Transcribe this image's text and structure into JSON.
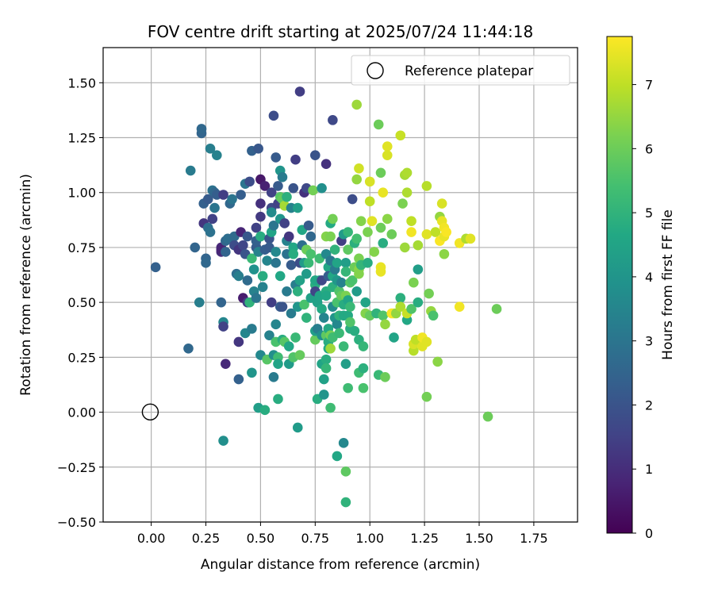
{
  "chart_data": {
    "type": "scatter",
    "title": "FOV centre drift starting at 2025/07/24 11:44:18",
    "xlabel": "Angular distance from reference (arcmin)",
    "ylabel": "Rotation from reference (arcmin)",
    "xlim": [
      -0.22,
      1.95
    ],
    "ylim": [
      -0.5,
      1.66
    ],
    "xticks": [
      "0.00",
      "0.25",
      "0.50",
      "0.75",
      "1.00",
      "1.25",
      "1.50",
      "1.75"
    ],
    "yticks": [
      "−0.50",
      "−0.25",
      "0.00",
      "0.25",
      "0.50",
      "0.75",
      "1.00",
      "1.25",
      "1.50"
    ],
    "grid": true,
    "legend": {
      "placement": "upper-right",
      "entries": [
        "Reference platepar"
      ]
    },
    "reference_point": {
      "x": 0.0,
      "y": 0.0
    },
    "colorbar": {
      "label": "Hours from first FF file",
      "colormap": "viridis",
      "range": [
        0,
        7.75
      ],
      "ticks": [
        "0",
        "1",
        "2",
        "3",
        "4",
        "5",
        "6",
        "7"
      ]
    },
    "points": [
      [
        0.02,
        0.66,
        2.4
      ],
      [
        0.17,
        0.29,
        2.6
      ],
      [
        0.18,
        1.1,
        3.2
      ],
      [
        0.2,
        0.75,
        2.5
      ],
      [
        0.22,
        0.5,
        3.3
      ],
      [
        0.23,
        1.27,
        2.5
      ],
      [
        0.23,
        1.29,
        2.6
      ],
      [
        0.24,
        0.86,
        1.2
      ],
      [
        0.24,
        0.95,
        2.4
      ],
      [
        0.25,
        0.7,
        2.5
      ],
      [
        0.25,
        0.68,
        2.6
      ],
      [
        0.26,
        0.97,
        2.2
      ],
      [
        0.26,
        0.84,
        2.8
      ],
      [
        0.27,
        1.2,
        3.3
      ],
      [
        0.27,
        0.82,
        2.9
      ],
      [
        0.28,
        0.88,
        1.5
      ],
      [
        0.28,
        1.01,
        2.9
      ],
      [
        0.29,
        1.0,
        2.6
      ],
      [
        0.29,
        0.93,
        3.0
      ],
      [
        0.3,
        1.17,
        3.4
      ],
      [
        0.3,
        0.99,
        2.3
      ],
      [
        0.32,
        0.5,
        2.5
      ],
      [
        0.32,
        0.75,
        0.9
      ],
      [
        0.32,
        0.73,
        1.0
      ],
      [
        0.32,
        0.74,
        0.8
      ],
      [
        0.33,
        0.41,
        3.5
      ],
      [
        0.33,
        0.39,
        1.5
      ],
      [
        0.33,
        0.99,
        1.4
      ],
      [
        0.33,
        -0.13,
        3.8
      ],
      [
        0.34,
        0.22,
        0.9
      ],
      [
        0.34,
        0.78,
        2.6
      ],
      [
        0.34,
        0.73,
        2.5
      ],
      [
        0.35,
        0.79,
        2.8
      ],
      [
        0.36,
        0.95,
        2.6
      ],
      [
        0.37,
        0.97,
        3.0
      ],
      [
        0.38,
        0.8,
        2.7
      ],
      [
        0.38,
        0.76,
        1.8
      ],
      [
        0.39,
        0.63,
        2.8
      ],
      [
        0.4,
        0.62,
        3.3
      ],
      [
        0.4,
        0.15,
        2.4
      ],
      [
        0.4,
        0.32,
        1.2
      ],
      [
        0.4,
        0.74,
        1.2
      ],
      [
        0.41,
        0.82,
        0.8
      ],
      [
        0.41,
        0.99,
        2.3
      ],
      [
        0.42,
        0.52,
        0.6
      ],
      [
        0.42,
        0.76,
        1.6
      ],
      [
        0.43,
        0.72,
        2.0
      ],
      [
        0.43,
        0.36,
        3.5
      ],
      [
        0.43,
        1.04,
        3.0
      ],
      [
        0.44,
        0.6,
        2.7
      ],
      [
        0.44,
        0.8,
        2.1
      ],
      [
        0.44,
        0.5,
        1.4
      ],
      [
        0.45,
        1.05,
        1.8
      ],
      [
        0.45,
        0.5,
        5.0
      ],
      [
        0.46,
        0.7,
        5.2
      ],
      [
        0.46,
        0.38,
        3.2
      ],
      [
        0.46,
        0.18,
        4.0
      ],
      [
        0.46,
        1.19,
        2.4
      ],
      [
        0.47,
        0.65,
        3.9
      ],
      [
        0.47,
        0.55,
        3.4
      ],
      [
        0.48,
        0.84,
        1.5
      ],
      [
        0.48,
        0.75,
        2.2
      ],
      [
        0.48,
        0.52,
        3.0
      ],
      [
        0.48,
        0.78,
        2.4
      ],
      [
        0.49,
        0.02,
        4.3
      ],
      [
        0.49,
        1.2,
        2.1
      ],
      [
        0.49,
        0.73,
        3.4
      ],
      [
        0.5,
        1.06,
        0.5
      ],
      [
        0.5,
        0.95,
        1.1
      ],
      [
        0.5,
        0.89,
        1.3
      ],
      [
        0.5,
        0.8,
        4.8
      ],
      [
        0.5,
        0.26,
        3.6
      ],
      [
        0.51,
        0.57,
        3.4
      ],
      [
        0.51,
        0.62,
        4.8
      ],
      [
        0.52,
        0.01,
        4.8
      ],
      [
        0.52,
        1.03,
        0.7
      ],
      [
        0.52,
        0.74,
        2.3
      ],
      [
        0.53,
        0.24,
        5.7
      ],
      [
        0.53,
        0.69,
        3.5
      ],
      [
        0.54,
        0.79,
        2.0
      ],
      [
        0.54,
        0.75,
        2.2
      ],
      [
        0.54,
        0.35,
        3.4
      ],
      [
        0.55,
        1.0,
        1.5
      ],
      [
        0.55,
        0.93,
        1.7
      ],
      [
        0.55,
        0.91,
        3.7
      ],
      [
        0.55,
        0.82,
        4.5
      ],
      [
        0.55,
        0.5,
        1.4
      ],
      [
        0.56,
        1.35,
        1.8
      ],
      [
        0.56,
        0.26,
        3.8
      ],
      [
        0.56,
        0.16,
        3.2
      ],
      [
        0.56,
        0.85,
        3.0
      ],
      [
        0.57,
        1.16,
        2.2
      ],
      [
        0.57,
        0.4,
        3.5
      ],
      [
        0.57,
        0.32,
        5.5
      ],
      [
        0.57,
        0.73,
        3.6
      ],
      [
        0.57,
        0.68,
        3.0
      ],
      [
        0.58,
        1.03,
        2.2
      ],
      [
        0.58,
        0.25,
        5.3
      ],
      [
        0.58,
        0.22,
        4.5
      ],
      [
        0.58,
        0.06,
        4.8
      ],
      [
        0.58,
        0.95,
        1.5
      ],
      [
        0.59,
        1.1,
        4.0
      ],
      [
        0.59,
        0.98,
        5.7
      ],
      [
        0.59,
        0.88,
        4.0
      ],
      [
        0.59,
        0.48,
        2.2
      ],
      [
        0.59,
        0.62,
        4.6
      ],
      [
        0.6,
        0.97,
        5.9
      ],
      [
        0.6,
        1.07,
        3.2
      ],
      [
        0.6,
        0.48,
        2.0
      ],
      [
        0.6,
        0.33,
        4.8
      ],
      [
        0.61,
        0.94,
        6.7
      ],
      [
        0.61,
        0.86,
        1.5
      ],
      [
        0.61,
        0.32,
        5.7
      ],
      [
        0.62,
        0.98,
        4.9
      ],
      [
        0.62,
        0.72,
        2.9
      ],
      [
        0.62,
        0.55,
        3.2
      ],
      [
        0.62,
        0.78,
        3.4
      ],
      [
        0.63,
        0.22,
        4.2
      ],
      [
        0.63,
        0.8,
        1.2
      ],
      [
        0.63,
        0.3,
        4.6
      ],
      [
        0.64,
        0.93,
        3.4
      ],
      [
        0.64,
        0.67,
        2.2
      ],
      [
        0.64,
        0.45,
        3.2
      ],
      [
        0.65,
        1.02,
        2.0
      ],
      [
        0.65,
        0.75,
        4.6
      ],
      [
        0.65,
        0.25,
        5.6
      ],
      [
        0.65,
        0.72,
        4.8
      ],
      [
        0.66,
        1.15,
        1.4
      ],
      [
        0.66,
        0.58,
        3.3
      ],
      [
        0.66,
        0.34,
        5.2
      ],
      [
        0.67,
        -0.07,
        4.2
      ],
      [
        0.67,
        0.55,
        4.9
      ],
      [
        0.67,
        0.93,
        4.3
      ],
      [
        0.67,
        0.48,
        4.0
      ],
      [
        0.68,
        1.46,
        1.4
      ],
      [
        0.68,
        0.68,
        1.8
      ],
      [
        0.68,
        0.6,
        4.4
      ],
      [
        0.68,
        0.26,
        5.9
      ],
      [
        0.69,
        0.83,
        4.6
      ],
      [
        0.69,
        0.76,
        2.8
      ],
      [
        0.7,
        1.0,
        1.1
      ],
      [
        0.7,
        0.68,
        4.2
      ],
      [
        0.7,
        0.49,
        5.5
      ],
      [
        0.71,
        0.43,
        5.0
      ],
      [
        0.71,
        0.74,
        6.0
      ],
      [
        0.71,
        0.63,
        4.2
      ],
      [
        0.71,
        1.02,
        1.7
      ],
      [
        0.72,
        0.85,
        2.2
      ],
      [
        0.72,
        0.68,
        5.2
      ],
      [
        0.73,
        0.8,
        2.6
      ],
      [
        0.73,
        0.72,
        5.5
      ],
      [
        0.73,
        0.52,
        4.4
      ],
      [
        0.74,
        1.01,
        6.1
      ],
      [
        0.75,
        0.58,
        4.9
      ],
      [
        0.75,
        0.55,
        1.6
      ],
      [
        0.75,
        0.6,
        4.6
      ],
      [
        0.75,
        0.33,
        5.9
      ],
      [
        0.75,
        0.37,
        4.3
      ],
      [
        0.75,
        1.17,
        2.0
      ],
      [
        0.76,
        0.38,
        3.3
      ],
      [
        0.76,
        0.06,
        4.8
      ],
      [
        0.76,
        0.5,
        4.4
      ],
      [
        0.77,
        0.7,
        5.3
      ],
      [
        0.77,
        0.6,
        4.5
      ],
      [
        0.77,
        0.53,
        4.5
      ],
      [
        0.78,
        0.47,
        4.7
      ],
      [
        0.78,
        1.02,
        3.8
      ],
      [
        0.78,
        0.6,
        1.7
      ],
      [
        0.78,
        0.35,
        3.8
      ],
      [
        0.78,
        0.22,
        4.5
      ],
      [
        0.79,
        0.43,
        3.5
      ],
      [
        0.79,
        0.15,
        4.4
      ],
      [
        0.79,
        0.08,
        4.0
      ],
      [
        0.8,
        0.8,
        6.3
      ],
      [
        0.8,
        1.13,
        1.1
      ],
      [
        0.8,
        0.72,
        3.6
      ],
      [
        0.8,
        0.55,
        4.8
      ],
      [
        0.8,
        0.53,
        4.6
      ],
      [
        0.8,
        0.35,
        5.8
      ],
      [
        0.8,
        0.24,
        4.8
      ],
      [
        0.8,
        0.2,
        5.1
      ],
      [
        0.81,
        0.66,
        4.6
      ],
      [
        0.81,
        0.38,
        4.7
      ],
      [
        0.81,
        0.32,
        4.8
      ],
      [
        0.81,
        0.29,
        4.7
      ],
      [
        0.81,
        0.62,
        2.3
      ],
      [
        0.82,
        0.8,
        6.2
      ],
      [
        0.82,
        0.69,
        3.1
      ],
      [
        0.82,
        0.86,
        4.7
      ],
      [
        0.82,
        0.35,
        6.1
      ],
      [
        0.82,
        0.02,
        5.3
      ],
      [
        0.82,
        0.29,
        6.6
      ],
      [
        0.83,
        1.33,
        1.7
      ],
      [
        0.83,
        0.62,
        4.6
      ],
      [
        0.83,
        0.57,
        4.9
      ],
      [
        0.83,
        0.88,
        6.1
      ],
      [
        0.83,
        0.48,
        3.7
      ],
      [
        0.83,
        0.34,
        5.3
      ],
      [
        0.84,
        0.74,
        5.0
      ],
      [
        0.84,
        0.65,
        3.2
      ],
      [
        0.84,
        0.43,
        4.0
      ],
      [
        0.85,
        -0.2,
        4.6
      ],
      [
        0.85,
        0.4,
        3.6
      ],
      [
        0.85,
        0.5,
        5.5
      ],
      [
        0.85,
        0.6,
        4.1
      ],
      [
        0.85,
        0.68,
        4.5
      ],
      [
        0.86,
        0.36,
        5.2
      ],
      [
        0.86,
        0.44,
        5.0
      ],
      [
        0.86,
        0.55,
        5.6
      ],
      [
        0.87,
        0.53,
        5.9
      ],
      [
        0.87,
        0.78,
        1.4
      ],
      [
        0.87,
        0.59,
        3.4
      ],
      [
        0.88,
        -0.14,
        3.6
      ],
      [
        0.88,
        0.81,
        4.2
      ],
      [
        0.88,
        0.44,
        4.7
      ],
      [
        0.88,
        0.3,
        5.2
      ],
      [
        0.88,
        0.49,
        4.8
      ],
      [
        0.89,
        -0.41,
        5.0
      ],
      [
        0.89,
        -0.27,
        5.8
      ],
      [
        0.89,
        0.22,
        4.3
      ],
      [
        0.89,
        0.68,
        4.3
      ],
      [
        0.89,
        0.64,
        5.1
      ],
      [
        0.89,
        0.53,
        6.2
      ],
      [
        0.9,
        0.11,
        5.3
      ],
      [
        0.9,
        0.74,
        5.8
      ],
      [
        0.9,
        0.82,
        5.1
      ],
      [
        0.9,
        0.51,
        4.5
      ],
      [
        0.9,
        0.44,
        4.7
      ],
      [
        0.91,
        0.38,
        4.8
      ],
      [
        0.91,
        0.48,
        5.2
      ],
      [
        0.91,
        0.59,
        5.7
      ],
      [
        0.91,
        0.41,
        5.6
      ],
      [
        0.92,
        0.6,
        5.5
      ],
      [
        0.92,
        0.97,
        1.8
      ],
      [
        0.93,
        0.77,
        4.9
      ],
      [
        0.93,
        0.66,
        6.0
      ],
      [
        0.93,
        0.37,
        4.8
      ],
      [
        0.94,
        1.4,
        6.6
      ],
      [
        0.94,
        0.79,
        5.4
      ],
      [
        0.94,
        1.06,
        6.5
      ],
      [
        0.94,
        0.55,
        4.2
      ],
      [
        0.95,
        0.33,
        4.9
      ],
      [
        0.95,
        1.11,
        7.2
      ],
      [
        0.95,
        0.7,
        6.2
      ],
      [
        0.95,
        0.65,
        6.4
      ],
      [
        0.95,
        0.18,
        5.3
      ],
      [
        0.95,
        0.63,
        6.3
      ],
      [
        0.96,
        0.87,
        6.3
      ],
      [
        0.96,
        0.67,
        5.1
      ],
      [
        0.97,
        0.2,
        4.9
      ],
      [
        0.97,
        0.11,
        5.5
      ],
      [
        0.97,
        0.3,
        5.1
      ],
      [
        0.98,
        0.5,
        4.5
      ],
      [
        0.98,
        0.45,
        6.3
      ],
      [
        0.99,
        0.68,
        4.8
      ],
      [
        0.99,
        0.82,
        6.2
      ],
      [
        1.0,
        1.05,
        7.3
      ],
      [
        1.0,
        0.96,
        7.0
      ],
      [
        1.0,
        0.44,
        5.9
      ],
      [
        1.01,
        0.87,
        7.4
      ],
      [
        1.02,
        0.73,
        6.3
      ],
      [
        1.03,
        0.45,
        5.0
      ],
      [
        1.04,
        0.17,
        5.2
      ],
      [
        1.04,
        1.31,
        6.0
      ],
      [
        1.05,
        0.66,
        7.5
      ],
      [
        1.05,
        0.64,
        7.5
      ],
      [
        1.05,
        0.84,
        6.0
      ],
      [
        1.05,
        1.09,
        6.0
      ],
      [
        1.06,
        1.0,
        7.5
      ],
      [
        1.06,
        0.44,
        5.6
      ],
      [
        1.06,
        0.77,
        4.8
      ],
      [
        1.07,
        0.4,
        6.5
      ],
      [
        1.07,
        0.16,
        6.0
      ],
      [
        1.08,
        1.21,
        7.4
      ],
      [
        1.08,
        0.88,
        6.4
      ],
      [
        1.08,
        1.17,
        7.3
      ],
      [
        1.1,
        0.81,
        6.0
      ],
      [
        1.1,
        0.45,
        7.7
      ],
      [
        1.11,
        0.34,
        4.5
      ],
      [
        1.11,
        0.45,
        7.7
      ],
      [
        1.12,
        0.45,
        6.5
      ],
      [
        1.14,
        0.52,
        4.9
      ],
      [
        1.14,
        1.26,
        7.1
      ],
      [
        1.14,
        0.48,
        6.8
      ],
      [
        1.15,
        0.95,
        6.2
      ],
      [
        1.16,
        0.75,
        6.6
      ],
      [
        1.16,
        1.08,
        6.7
      ],
      [
        1.17,
        1.0,
        6.8
      ],
      [
        1.17,
        1.09,
        6.8
      ],
      [
        1.17,
        0.42,
        4.6
      ],
      [
        1.17,
        0.45,
        7.1
      ],
      [
        1.19,
        0.87,
        7.0
      ],
      [
        1.19,
        0.82,
        7.6
      ],
      [
        1.19,
        0.47,
        5.6
      ],
      [
        1.2,
        0.28,
        6.9
      ],
      [
        1.2,
        0.59,
        6.2
      ],
      [
        1.2,
        0.31,
        7.3
      ],
      [
        1.21,
        0.33,
        7.0
      ],
      [
        1.22,
        0.76,
        6.7
      ],
      [
        1.22,
        0.5,
        4.8
      ],
      [
        1.22,
        0.65,
        4.3
      ],
      [
        1.24,
        0.3,
        7.4
      ],
      [
        1.24,
        0.34,
        7.6
      ],
      [
        1.26,
        0.07,
        6.1
      ],
      [
        1.26,
        0.81,
        7.4
      ],
      [
        1.26,
        1.03,
        6.9
      ],
      [
        1.26,
        0.32,
        7.4
      ],
      [
        1.27,
        0.54,
        6.1
      ],
      [
        1.28,
        0.46,
        6.5
      ],
      [
        1.29,
        0.44,
        5.5
      ],
      [
        1.3,
        0.82,
        7.0
      ],
      [
        1.31,
        0.23,
        6.4
      ],
      [
        1.32,
        0.78,
        7.7
      ],
      [
        1.32,
        0.89,
        6.5
      ],
      [
        1.33,
        0.95,
        7.3
      ],
      [
        1.33,
        0.87,
        7.5
      ],
      [
        1.34,
        0.8,
        7.5
      ],
      [
        1.34,
        0.84,
        7.6
      ],
      [
        1.34,
        0.72,
        6.4
      ],
      [
        1.35,
        0.82,
        7.7
      ],
      [
        1.41,
        0.48,
        7.6
      ],
      [
        1.41,
        0.77,
        7.6
      ],
      [
        1.44,
        0.79,
        6.8
      ],
      [
        1.46,
        0.79,
        7.4
      ],
      [
        1.54,
        -0.02,
        6.0
      ],
      [
        1.58,
        0.47,
        6.0
      ]
    ]
  }
}
